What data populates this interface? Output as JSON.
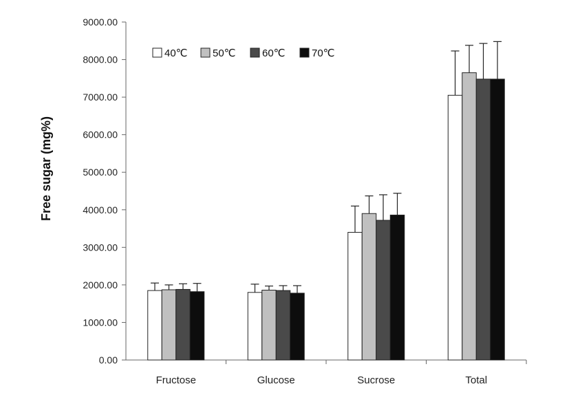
{
  "chart_data": {
    "type": "bar",
    "title": "",
    "xlabel": "",
    "ylabel": "Free sugar (mg%)",
    "ylim": [
      0,
      9000
    ],
    "yticks": [
      "0.00",
      "1000.00",
      "2000.00",
      "3000.00",
      "4000.00",
      "5000.00",
      "6000.00",
      "7000.00",
      "8000.00",
      "9000.00"
    ],
    "categories": [
      "Fructose",
      "Glucose",
      "Sucrose",
      "Total"
    ],
    "legend_position": "top-left",
    "grid": false,
    "series": [
      {
        "name": "40℃",
        "color": "#ffffff",
        "values": [
          1850,
          1800,
          3400,
          7050
        ],
        "errors": [
          200,
          220,
          700,
          1180
        ]
      },
      {
        "name": "50℃",
        "color": "#c0c0c0",
        "values": [
          1870,
          1860,
          3900,
          7650
        ],
        "errors": [
          130,
          110,
          470,
          730
        ]
      },
      {
        "name": "60℃",
        "color": "#4a4a4a",
        "values": [
          1880,
          1850,
          3720,
          7480
        ],
        "errors": [
          150,
          130,
          680,
          950
        ]
      },
      {
        "name": "70℃",
        "color": "#0d0d0d",
        "values": [
          1820,
          1780,
          3860,
          7480
        ],
        "errors": [
          220,
          200,
          580,
          1000
        ]
      }
    ]
  }
}
